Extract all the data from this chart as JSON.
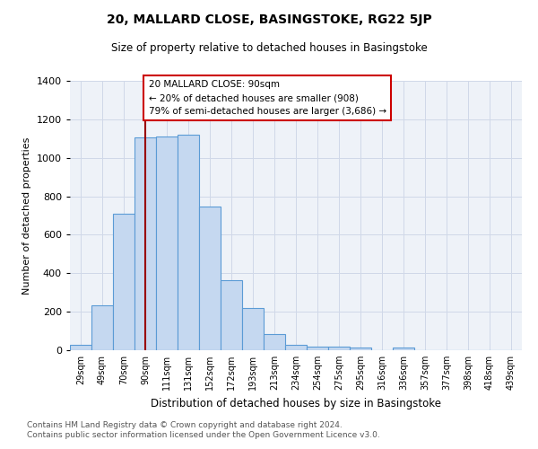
{
  "title": "20, MALLARD CLOSE, BASINGSTOKE, RG22 5JP",
  "subtitle": "Size of property relative to detached houses in Basingstoke",
  "xlabel": "Distribution of detached houses by size in Basingstoke",
  "ylabel": "Number of detached properties",
  "footnote1": "Contains HM Land Registry data © Crown copyright and database right 2024.",
  "footnote2": "Contains public sector information licensed under the Open Government Licence v3.0.",
  "categories": [
    "29sqm",
    "49sqm",
    "70sqm",
    "90sqm",
    "111sqm",
    "131sqm",
    "152sqm",
    "172sqm",
    "193sqm",
    "213sqm",
    "234sqm",
    "254sqm",
    "275sqm",
    "295sqm",
    "316sqm",
    "336sqm",
    "357sqm",
    "377sqm",
    "398sqm",
    "418sqm",
    "439sqm"
  ],
  "values": [
    28,
    235,
    710,
    1105,
    1110,
    1120,
    745,
    365,
    220,
    85,
    28,
    18,
    18,
    15,
    0,
    15,
    0,
    0,
    0,
    0,
    0
  ],
  "bar_color": "#c5d8f0",
  "bar_edge_color": "#5b9bd5",
  "grid_color": "#d0d8e8",
  "background_color": "#eef2f8",
  "vline_x": 3,
  "vline_color": "#990000",
  "annotation_line1": "20 MALLARD CLOSE: 90sqm",
  "annotation_line2": "← 20% of detached houses are smaller (908)",
  "annotation_line3": "79% of semi-detached houses are larger (3,686) →",
  "annotation_box_color": "white",
  "annotation_box_edge": "#cc0000",
  "ylim": [
    0,
    1400
  ],
  "yticks": [
    0,
    200,
    400,
    600,
    800,
    1000,
    1200,
    1400
  ]
}
